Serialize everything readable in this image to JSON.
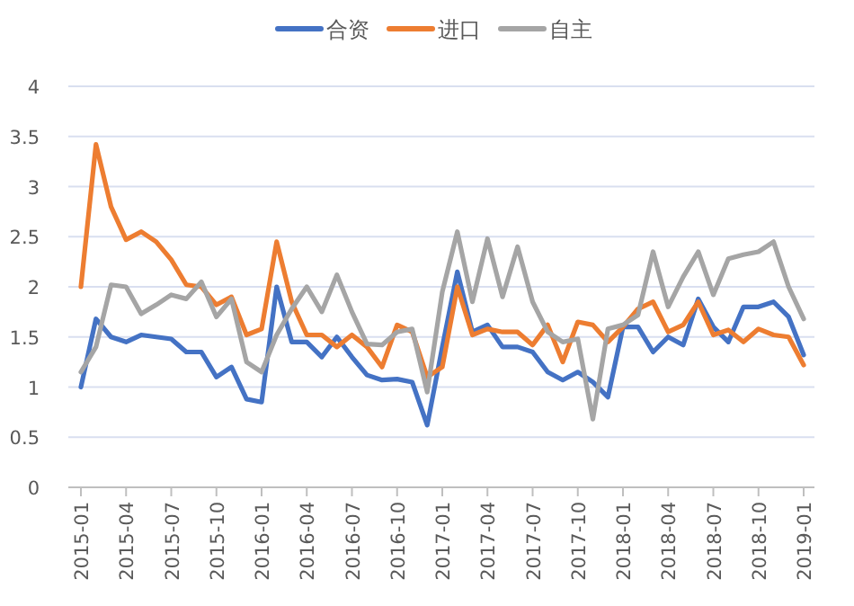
{
  "chart_data": {
    "type": "line",
    "categories": [
      "2015-01",
      null,
      null,
      "2015-04",
      null,
      null,
      "2015-07",
      null,
      null,
      "2015-10",
      null,
      null,
      "2016-01",
      null,
      null,
      "2016-04",
      null,
      null,
      "2016-07",
      null,
      null,
      "2016-10",
      null,
      null,
      "2017-01",
      null,
      null,
      "2017-04",
      null,
      null,
      "2017-07",
      null,
      null,
      "2017-10",
      null,
      null,
      "2018-01",
      null,
      null,
      "2018-04",
      null,
      null,
      "2018-07",
      null,
      null,
      "2018-10",
      null,
      null,
      "2019-01"
    ],
    "series": [
      {
        "name": "合资",
        "color": "#4472c4",
        "values": [
          1.0,
          1.68,
          1.5,
          1.45,
          1.52,
          1.5,
          1.48,
          1.35,
          1.35,
          1.1,
          1.2,
          0.88,
          0.85,
          2.0,
          1.45,
          1.45,
          1.3,
          1.5,
          1.3,
          1.12,
          1.07,
          1.08,
          1.05,
          0.62,
          1.4,
          2.15,
          1.55,
          1.62,
          1.4,
          1.4,
          1.35,
          1.15,
          1.07,
          1.15,
          1.05,
          0.9,
          1.6,
          1.6,
          1.35,
          1.5,
          1.42,
          1.88,
          1.6,
          1.45,
          1.8,
          1.8,
          1.85,
          1.7,
          1.32
        ]
      },
      {
        "name": "进口",
        "color": "#ed7d31",
        "values": [
          2.0,
          3.42,
          2.8,
          2.47,
          2.55,
          2.45,
          2.27,
          2.02,
          2.0,
          1.82,
          1.9,
          1.52,
          1.58,
          2.45,
          1.85,
          1.52,
          1.52,
          1.4,
          1.52,
          1.4,
          1.2,
          1.62,
          1.55,
          1.1,
          1.2,
          2.0,
          1.52,
          1.58,
          1.55,
          1.55,
          1.42,
          1.62,
          1.25,
          1.65,
          1.62,
          1.45,
          1.6,
          1.78,
          1.85,
          1.55,
          1.62,
          1.85,
          1.52,
          1.57,
          1.45,
          1.58,
          1.52,
          1.5,
          1.22
        ]
      },
      {
        "name": "自主",
        "color": "#a5a5a5",
        "values": [
          1.15,
          1.4,
          2.02,
          2.0,
          1.73,
          1.82,
          1.92,
          1.88,
          2.05,
          1.7,
          1.88,
          1.25,
          1.15,
          1.52,
          1.78,
          2.0,
          1.75,
          2.12,
          1.75,
          1.43,
          1.42,
          1.55,
          1.58,
          0.95,
          1.95,
          2.55,
          1.85,
          2.48,
          1.9,
          2.4,
          1.85,
          1.55,
          1.45,
          1.48,
          0.68,
          1.58,
          1.62,
          1.72,
          2.35,
          1.8,
          2.1,
          2.35,
          1.92,
          2.28,
          2.32,
          2.35,
          2.45,
          2.0,
          1.68
        ]
      }
    ],
    "ylim": [
      0,
      4
    ],
    "yticks": [
      0,
      0.5,
      1,
      1.5,
      2,
      2.5,
      3,
      3.5,
      4
    ],
    "grid": "y",
    "legend": "top",
    "line_style": "solid",
    "marker": "none"
  }
}
